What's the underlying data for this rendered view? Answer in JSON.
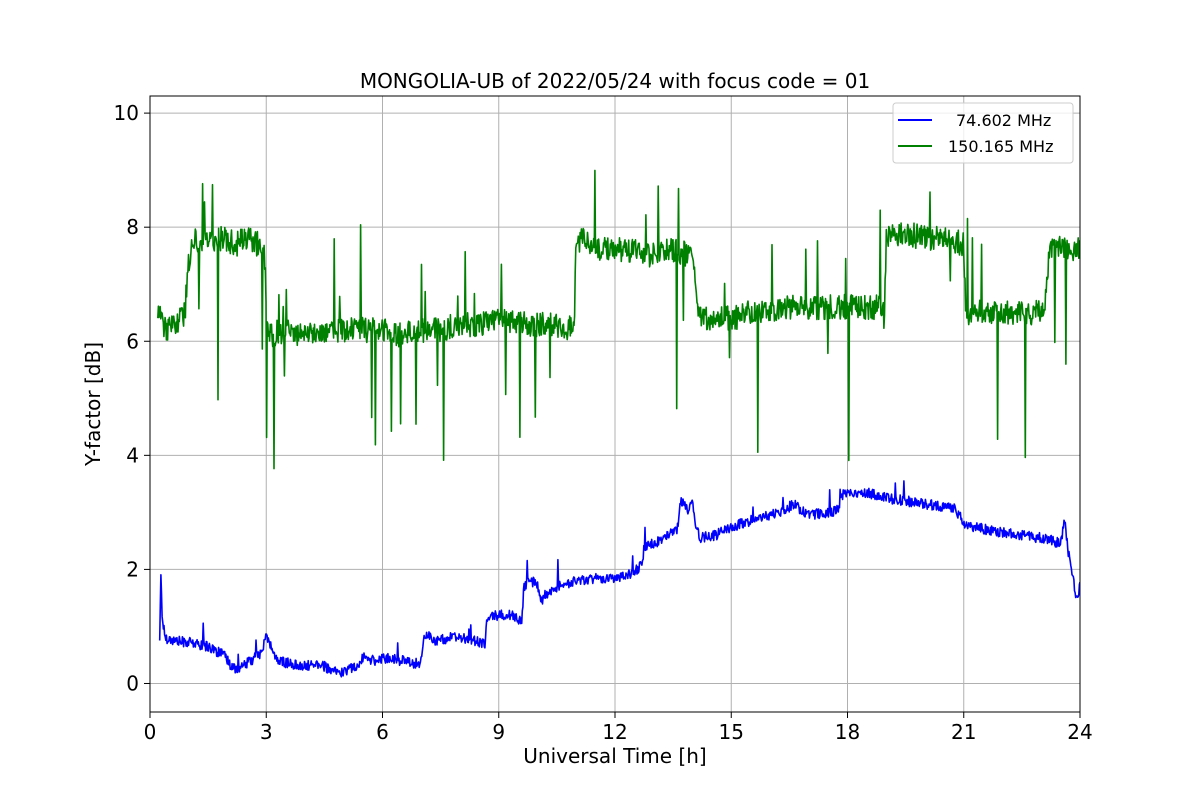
{
  "chart_data": {
    "type": "line",
    "title": "MONGOLIA-UB of 2022/05/24 with focus code = 01",
    "xlabel": "Universal Time [h]",
    "ylabel": "Y-factor [dB]",
    "xlim": [
      0,
      24
    ],
    "ylim": [
      -0.5,
      10.3
    ],
    "xticks": [
      0,
      3,
      6,
      9,
      12,
      15,
      18,
      21,
      24
    ],
    "xtick_labels": [
      "0",
      "3",
      "6",
      "9",
      "12",
      "15",
      "18",
      "21",
      "24"
    ],
    "yticks": [
      0,
      2,
      4,
      6,
      8,
      10
    ],
    "ytick_labels": [
      "0",
      "2",
      "4",
      "6",
      "8",
      "10"
    ],
    "grid": true,
    "legend_position": "top-right",
    "series": [
      {
        "name": "74.602 MHz",
        "color": "#0000ff",
        "noise": 0.09,
        "x": [
          0.25,
          0.28,
          0.32,
          0.4,
          0.6,
          1.0,
          1.5,
          1.9,
          2.1,
          2.3,
          2.6,
          2.9,
          3.0,
          3.15,
          3.3,
          3.6,
          4.0,
          4.4,
          4.7,
          5.0,
          5.3,
          5.5,
          5.8,
          6.1,
          6.5,
          6.8,
          6.95,
          7.1,
          7.4,
          7.7,
          8.0,
          8.3,
          8.65,
          8.7,
          9.0,
          9.3,
          9.6,
          9.65,
          9.8,
          10.0,
          10.1,
          10.2,
          10.5,
          11.0,
          11.5,
          12.0,
          12.5,
          12.7,
          12.75,
          13.0,
          13.4,
          13.6,
          13.7,
          13.9,
          14.0,
          14.1,
          14.2,
          14.6,
          15.0,
          15.5,
          16.0,
          16.4,
          16.6,
          17.0,
          17.5,
          17.8,
          17.85,
          18.0,
          18.5,
          19.0,
          19.5,
          20.0,
          20.5,
          20.8,
          21.0,
          21.2,
          21.6,
          22.0,
          22.5,
          23.0,
          23.3,
          23.5,
          23.6,
          23.7,
          23.8,
          23.9,
          24.0
        ],
        "y": [
          0.8,
          1.9,
          1.1,
          0.8,
          0.75,
          0.72,
          0.65,
          0.5,
          0.3,
          0.25,
          0.4,
          0.55,
          0.85,
          0.6,
          0.4,
          0.35,
          0.3,
          0.35,
          0.2,
          0.2,
          0.3,
          0.45,
          0.4,
          0.45,
          0.4,
          0.35,
          0.35,
          0.85,
          0.75,
          0.8,
          0.8,
          0.75,
          0.7,
          1.15,
          1.2,
          1.2,
          1.1,
          1.7,
          1.8,
          1.75,
          1.45,
          1.55,
          1.7,
          1.8,
          1.85,
          1.85,
          1.95,
          2.1,
          2.4,
          2.45,
          2.6,
          2.7,
          3.2,
          3.05,
          3.2,
          2.7,
          2.55,
          2.6,
          2.75,
          2.85,
          2.95,
          3.05,
          3.15,
          2.95,
          3.0,
          3.05,
          3.3,
          3.35,
          3.35,
          3.25,
          3.2,
          3.15,
          3.1,
          3.05,
          2.8,
          2.75,
          2.7,
          2.65,
          2.6,
          2.55,
          2.5,
          2.45,
          2.85,
          2.3,
          1.95,
          1.45,
          1.7
        ]
      },
      {
        "name": "150.165 MHz",
        "color": "#008000",
        "noise": 0.22,
        "x": [
          0.2,
          0.25,
          0.3,
          0.5,
          0.9,
          1.0,
          1.1,
          1.3,
          1.6,
          1.9,
          2.2,
          2.5,
          2.8,
          2.95,
          3.0,
          3.05,
          3.5,
          4.0,
          4.5,
          5.0,
          5.5,
          6.0,
          6.5,
          7.0,
          7.5,
          8.0,
          8.5,
          9.0,
          9.5,
          10.0,
          10.5,
          10.8,
          10.95,
          11.0,
          11.1,
          11.5,
          12.0,
          12.5,
          12.8,
          13.0,
          13.1,
          13.5,
          14.0,
          14.1,
          14.2,
          14.5,
          15.0,
          15.5,
          16.0,
          16.5,
          17.0,
          17.5,
          18.0,
          18.5,
          18.9,
          18.95,
          19.0,
          19.5,
          20.0,
          20.5,
          21.0,
          21.05,
          21.1,
          21.5,
          22.0,
          22.5,
          23.0,
          23.1,
          23.2,
          23.5,
          24.0
        ],
        "y": [
          6.5,
          6.7,
          6.3,
          6.2,
          6.5,
          7.4,
          7.8,
          7.7,
          7.8,
          7.8,
          7.7,
          7.8,
          7.7,
          7.5,
          6.7,
          6.1,
          6.2,
          6.1,
          6.2,
          6.2,
          6.2,
          6.2,
          6.1,
          6.2,
          6.2,
          6.3,
          6.3,
          6.4,
          6.3,
          6.3,
          6.3,
          6.2,
          6.4,
          7.7,
          7.8,
          7.6,
          7.6,
          7.6,
          7.5,
          7.5,
          7.6,
          7.6,
          7.5,
          6.8,
          6.4,
          6.4,
          6.4,
          6.5,
          6.5,
          6.6,
          6.6,
          6.6,
          6.6,
          6.6,
          6.6,
          6.4,
          7.8,
          7.9,
          7.8,
          7.8,
          7.7,
          6.6,
          6.5,
          6.5,
          6.5,
          6.5,
          6.5,
          6.6,
          7.6,
          7.7,
          7.6
        ]
      }
    ]
  }
}
